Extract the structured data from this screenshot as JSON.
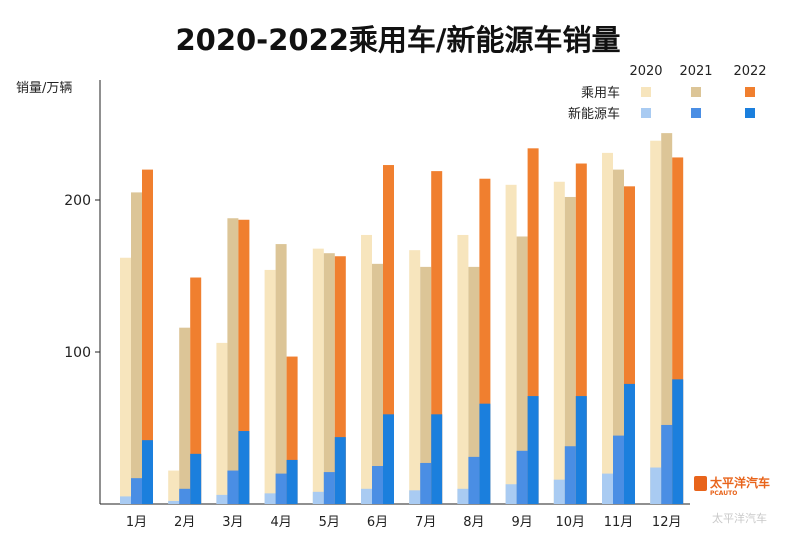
{
  "chart_data": {
    "type": "bar",
    "title": "2020-2022乘用车/新能源车销量",
    "ylabel": "销量/万辆",
    "ylim": [
      0,
      265
    ],
    "yticks": [
      100,
      200
    ],
    "categories": [
      "1月",
      "2月",
      "3月",
      "4月",
      "5月",
      "6月",
      "7月",
      "8月",
      "9月",
      "10月",
      "11月",
      "12月"
    ],
    "legend": {
      "years": [
        "2020",
        "2021",
        "2022"
      ],
      "groups": [
        "乘用车",
        "新能源车"
      ],
      "placement": "top-right"
    },
    "series": [
      {
        "name": "乘用车",
        "year": "2020",
        "color": "#f7e5bd",
        "values": [
          162,
          22,
          106,
          154,
          168,
          177,
          167,
          177,
          210,
          212,
          231,
          239
        ]
      },
      {
        "name": "乘用车",
        "year": "2021",
        "color": "#dcc597",
        "values": [
          205,
          116,
          188,
          171,
          165,
          158,
          156,
          156,
          176,
          202,
          220,
          244
        ]
      },
      {
        "name": "乘用车",
        "year": "2022",
        "color": "#f07f2f",
        "values": [
          220,
          149,
          187,
          97,
          163,
          223,
          219,
          214,
          234,
          224,
          209,
          228
        ]
      },
      {
        "name": "新能源车",
        "year": "2020",
        "color": "#a9cbf2",
        "values": [
          5,
          2,
          6,
          7,
          8,
          10,
          9,
          10,
          13,
          16,
          20,
          24
        ]
      },
      {
        "name": "新能源车",
        "year": "2021",
        "color": "#4a8ee4",
        "values": [
          17,
          10,
          22,
          20,
          21,
          25,
          27,
          31,
          35,
          38,
          45,
          52
        ]
      },
      {
        "name": "新能源车",
        "year": "2022",
        "color": "#1b7fdd",
        "values": [
          42,
          33,
          48,
          29,
          44,
          59,
          59,
          66,
          71,
          71,
          79,
          82
        ]
      }
    ]
  },
  "logo": {
    "name": "太平洋汽车",
    "sub": "PCAUTO",
    "watermark": "太平洋汽车"
  }
}
